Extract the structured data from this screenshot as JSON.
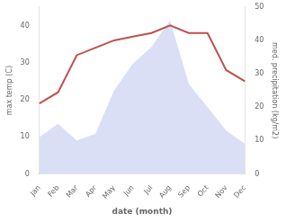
{
  "chart_data": {
    "type": "line",
    "categories": [
      "Jan",
      "Feb",
      "Mar",
      "Apr",
      "May",
      "Jun",
      "Jul",
      "Aug",
      "Sep",
      "Oct",
      "Nov",
      "Dec"
    ],
    "series": [
      {
        "type": "area",
        "color": "#adb9e8",
        "axis": "y2",
        "values": [
          11,
          15,
          10,
          12,
          25,
          33,
          38,
          46,
          27,
          20,
          13,
          9
        ]
      },
      {
        "type": "line",
        "color": "#c0504d",
        "axis": "y",
        "values": [
          19,
          22,
          32,
          34,
          36,
          37,
          38,
          40,
          38,
          38,
          28,
          25
        ]
      }
    ],
    "xlabel": "date (month)",
    "ylabel": "max temp (C)",
    "y2label": "med. precipitation (kg/m2)",
    "ylim": [
      0,
      45
    ],
    "yticks": [
      0,
      10,
      20,
      30,
      40
    ],
    "y2lim": [
      0,
      50
    ],
    "y2ticks": [
      0,
      10,
      20,
      30,
      40,
      50
    ],
    "grid": false
  }
}
